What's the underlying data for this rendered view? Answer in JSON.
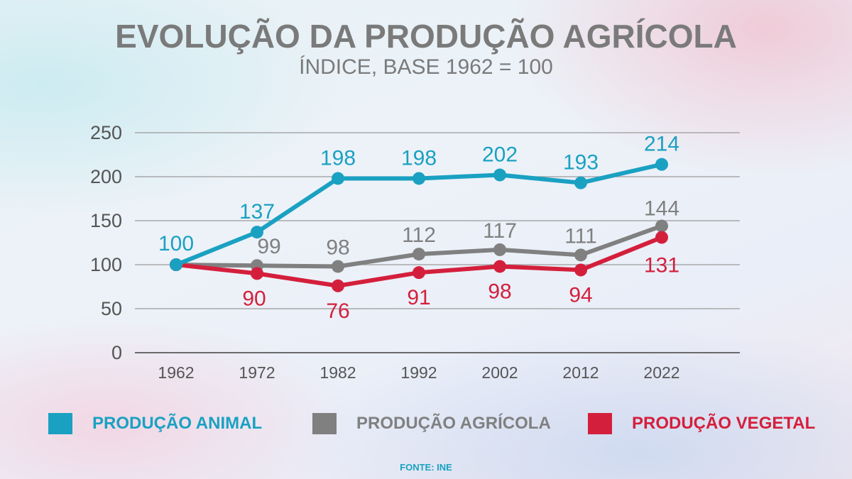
{
  "colors": {
    "animal": "#1aa1c2",
    "agricola": "#808080",
    "vegetal": "#d41f3c",
    "axis_text": "#555555",
    "grid": "#9a9a9a"
  },
  "chart_data": {
    "type": "line",
    "title": "EVOLUÇÃO DA PRODUÇÃO AGRÍCOLA",
    "subtitle": "ÍNDICE, BASE 1962 = 100",
    "x": [
      "1962",
      "1972",
      "1982",
      "1992",
      "2002",
      "2012",
      "2022"
    ],
    "y_ticks": [
      "0",
      "50",
      "100",
      "150",
      "200",
      "250"
    ],
    "ylim": [
      0,
      250
    ],
    "grid": true,
    "legend_position": "bottom",
    "series": [
      {
        "key": "animal",
        "name": "PRODUÇÃO ANIMAL",
        "values": [
          100,
          137,
          198,
          198,
          202,
          193,
          214
        ],
        "labels": [
          "100",
          "137",
          "198",
          "198",
          "202",
          "193",
          "214"
        ]
      },
      {
        "key": "agricola",
        "name": "PRODUÇÃO AGRÍCOLA",
        "values": [
          100,
          99,
          98,
          112,
          117,
          111,
          144
        ],
        "labels": [
          "",
          "99",
          "98",
          "112",
          "117",
          "111",
          "144"
        ]
      },
      {
        "key": "vegetal",
        "name": "PRODUÇÃO VEGETAL",
        "values": [
          100,
          90,
          76,
          91,
          98,
          94,
          131
        ],
        "labels": [
          "",
          "90",
          "76",
          "91",
          "98",
          "94",
          "131"
        ]
      }
    ]
  },
  "source": "FONTE: INE"
}
